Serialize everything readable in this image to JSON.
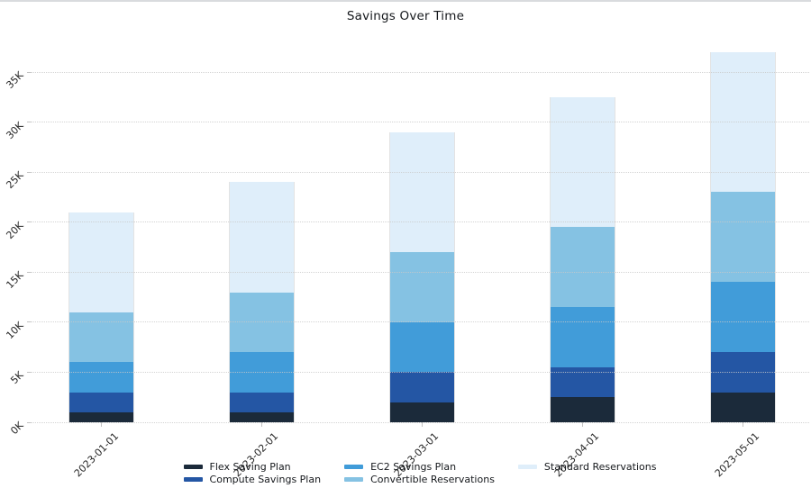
{
  "chart_data": {
    "type": "bar",
    "stacked": true,
    "title": "Savings Over Time",
    "categories": [
      "2023-01-01",
      "2023-02-01",
      "2023-03-01",
      "2023-04-01",
      "2023-05-01"
    ],
    "series": [
      {
        "name": "Flex Saving Plan",
        "color": "#1b2a3a",
        "values_k": [
          1,
          1,
          2,
          2.5,
          3
        ]
      },
      {
        "name": "Compute Savings Plan",
        "color": "#2456a4",
        "values_k": [
          2,
          2,
          3,
          3,
          4
        ]
      },
      {
        "name": "EC2 Savings Plan",
        "color": "#419cd9",
        "values_k": [
          3,
          4,
          5,
          6,
          7
        ]
      },
      {
        "name": "Convertible Reservations",
        "color": "#85c2e3",
        "values_k": [
          5,
          6,
          7,
          8,
          9
        ]
      },
      {
        "name": "Standard Reservations",
        "color": "#dfeefa",
        "values_k": [
          10,
          11,
          12,
          13,
          14
        ]
      }
    ],
    "totals_k": [
      21,
      24,
      29,
      32.5,
      37
    ],
    "y_axis": {
      "tick_labels": [
        "0K",
        "5K",
        "10K",
        "15K",
        "20K",
        "25K",
        "30K",
        "35K"
      ],
      "tick_step_k": 5,
      "ylim_k": [
        0,
        38.5
      ],
      "grid": "dotted"
    },
    "x_axis": {
      "label_rotation_deg": 45
    },
    "legend": {
      "position": "bottom",
      "columns": [
        [
          0,
          1
        ],
        [
          2,
          3
        ],
        [
          4
        ]
      ]
    }
  }
}
